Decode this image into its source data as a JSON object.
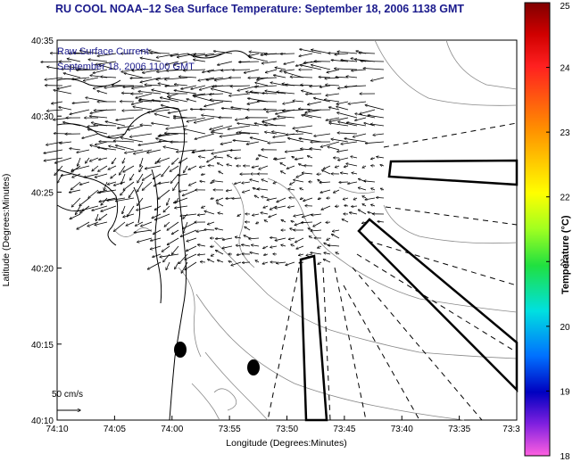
{
  "title": "RU COOL  NOAA–12  Sea Surface Temperature:  September 18, 2006 1138 GMT",
  "annotation": {
    "line1": "Raw Surface Current",
    "line2": "September 18, 2006 1100 GMT"
  },
  "axes": {
    "xlabel": "Longitude (Degrees:Minutes)",
    "ylabel": "Latitude (Degrees:Minutes)",
    "x_ticks": [
      "74:10",
      "74:05",
      "74:00",
      "73:55",
      "73:50",
      "73:45",
      "73:40",
      "73:35",
      "73:3"
    ],
    "y_ticks": [
      "40:35",
      "40:30",
      "40:25",
      "40:20",
      "40:15",
      "40:10"
    ]
  },
  "colorbar": {
    "label": "Temperature (°C)",
    "ticks": [
      "25",
      "24",
      "23",
      "22",
      "21",
      "20",
      "19",
      "18"
    ],
    "range": [
      18,
      25
    ]
  },
  "scale": {
    "label": "50 cm/s"
  },
  "colors": {
    "title": "#1a1a8c",
    "frame": "#000000",
    "coast": "#000000",
    "bathymetry": "#888888",
    "vectors": "#000000"
  }
}
